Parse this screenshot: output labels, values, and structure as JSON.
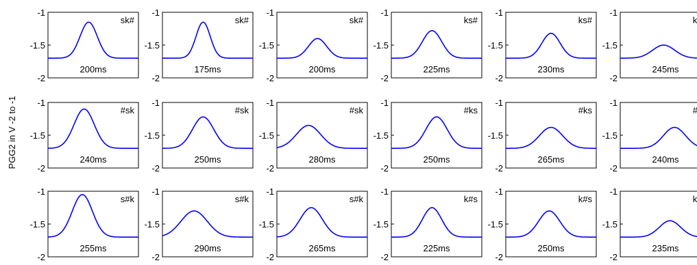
{
  "chart_data": {
    "type": "line",
    "ylabel": "PGG2 in V -2 to -1",
    "ylim": [
      -2,
      -1
    ],
    "yticks": [
      "-1",
      "-1.5",
      "-2"
    ],
    "line_color": "#0000ff",
    "grid": false,
    "layout": "3x6 small multiples",
    "panels": [
      {
        "label": "sk#",
        "duration": "200ms",
        "baseline": -1.7,
        "peak": -1.15,
        "peak_pos": 0.45,
        "width": 0.17
      },
      {
        "label": "sk#",
        "duration": "175ms",
        "baseline": -1.7,
        "peak": -1.15,
        "peak_pos": 0.45,
        "width": 0.14
      },
      {
        "label": "sk#",
        "duration": "200ms",
        "baseline": -1.7,
        "peak": -1.4,
        "peak_pos": 0.45,
        "width": 0.18
      },
      {
        "label": "ks#",
        "duration": "225ms",
        "baseline": -1.7,
        "peak": -1.28,
        "peak_pos": 0.45,
        "width": 0.19
      },
      {
        "label": "ks#",
        "duration": "230ms",
        "baseline": -1.7,
        "peak": -1.32,
        "peak_pos": 0.5,
        "width": 0.18
      },
      {
        "label": "ks#",
        "duration": "245ms",
        "baseline": -1.7,
        "peak": -1.5,
        "peak_pos": 0.48,
        "width": 0.22
      },
      {
        "label": "#sk",
        "duration": "240ms",
        "baseline": -1.7,
        "peak": -1.1,
        "peak_pos": 0.4,
        "width": 0.2
      },
      {
        "label": "#sk",
        "duration": "250ms",
        "baseline": -1.7,
        "peak": -1.22,
        "peak_pos": 0.45,
        "width": 0.21
      },
      {
        "label": "#sk",
        "duration": "280ms",
        "baseline": -1.7,
        "peak": -1.35,
        "peak_pos": 0.35,
        "width": 0.24
      },
      {
        "label": "#ks",
        "duration": "250ms",
        "baseline": -1.7,
        "peak": -1.22,
        "peak_pos": 0.5,
        "width": 0.21
      },
      {
        "label": "#ks",
        "duration": "265ms",
        "baseline": -1.7,
        "peak": -1.38,
        "peak_pos": 0.5,
        "width": 0.23
      },
      {
        "label": "#ks",
        "duration": "240ms",
        "baseline": -1.7,
        "peak": -1.38,
        "peak_pos": 0.6,
        "width": 0.22
      },
      {
        "label": "s#k",
        "duration": "255ms",
        "baseline": -1.7,
        "peak": -1.05,
        "peak_pos": 0.38,
        "width": 0.2
      },
      {
        "label": "s#k",
        "duration": "290ms",
        "baseline": -1.7,
        "peak": -1.3,
        "peak_pos": 0.35,
        "width": 0.26
      },
      {
        "label": "s#k",
        "duration": "265ms",
        "baseline": -1.7,
        "peak": -1.25,
        "peak_pos": 0.38,
        "width": 0.22
      },
      {
        "label": "k#s",
        "duration": "225ms",
        "baseline": -1.7,
        "peak": -1.25,
        "peak_pos": 0.45,
        "width": 0.19
      },
      {
        "label": "k#s",
        "duration": "250ms",
        "baseline": -1.7,
        "peak": -1.3,
        "peak_pos": 0.48,
        "width": 0.21
      },
      {
        "label": "k#s",
        "duration": "235ms",
        "baseline": -1.7,
        "peak": -1.45,
        "peak_pos": 0.55,
        "width": 0.21
      }
    ]
  }
}
